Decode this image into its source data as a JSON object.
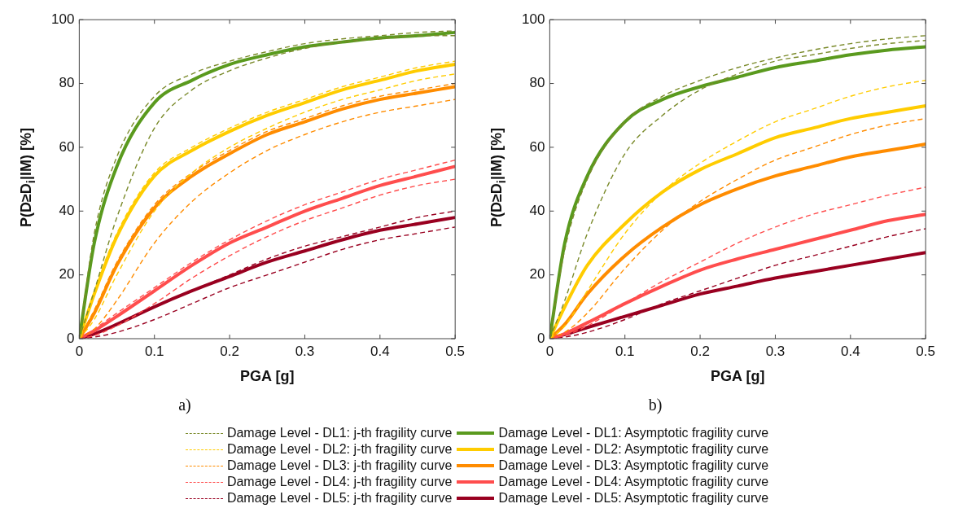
{
  "chart_data": [
    {
      "type": "line",
      "xlabel": "PGA [g]",
      "ylabel": "P(D≥D$_{i}$|IM) [%]",
      "annotations": [
        "a)"
      ],
      "xlim": [
        0,
        0.5
      ],
      "xticks": [
        0,
        0.1,
        0.2,
        0.3,
        0.4,
        0.5
      ],
      "ylim": [
        0,
        100
      ],
      "yticks": [
        0,
        20,
        40,
        60,
        80,
        100
      ],
      "grid": false,
      "legend": "bottom",
      "x": [
        0,
        0.02,
        0.05,
        0.1,
        0.15,
        0.2,
        0.25,
        0.3,
        0.35,
        0.4,
        0.45,
        0.5
      ],
      "series": [
        {
          "name": "Damage Level - DL1: j-th fragility curve",
          "color": "#7a8a2a",
          "line_style": "dashed",
          "values": [
            0,
            15,
            38,
            66,
            78,
            84,
            88,
            91,
            93,
            94,
            95,
            95
          ]
        },
        {
          "color": "#7a8a2a",
          "line_style": "dashed",
          "values": [
            0,
            33,
            57,
            76,
            83,
            87,
            90,
            92.5,
            94,
            95,
            96,
            96.5
          ]
        },
        {
          "name": "Damage Level - DL2: j-th fragility curve",
          "color": "#ffcc00",
          "line_style": "dashed",
          "values": [
            0,
            6,
            20,
            40,
            52,
            60,
            66,
            71,
            75,
            78,
            81,
            83
          ]
        },
        {
          "color": "#ffcc00",
          "line_style": "dashed",
          "values": [
            0,
            15,
            33,
            52,
            60,
            66,
            71,
            75,
            79,
            82,
            85,
            87
          ]
        },
        {
          "name": "Damage Level - DL3: j-th fragility curve",
          "color": "#ff8c00",
          "line_style": "dashed",
          "values": [
            0,
            3,
            12,
            30,
            43,
            52,
            59,
            64,
            68,
            71,
            73,
            75
          ]
        },
        {
          "color": "#ff8c00",
          "line_style": "dashed",
          "values": [
            0,
            9,
            24,
            42,
            52,
            59,
            65,
            69,
            73,
            76,
            78,
            80
          ]
        },
        {
          "name": "Damage Level - DL4: j-th fragility curve",
          "color": "#ff4d4d",
          "line_style": "dashed",
          "values": [
            0,
            1,
            4,
            11,
            19,
            26,
            32,
            37,
            41,
            45,
            48,
            50
          ]
        },
        {
          "color": "#ff4d4d",
          "line_style": "dashed",
          "values": [
            0,
            3,
            8,
            16,
            24,
            31,
            37,
            42,
            46,
            50,
            53,
            56
          ]
        },
        {
          "name": "Damage Level - DL5: j-th fragility curve",
          "color": "#990020",
          "line_style": "dashed",
          "values": [
            0,
            0.5,
            2,
            6,
            11,
            16,
            20,
            24,
            28,
            31,
            33,
            35
          ]
        },
        {
          "color": "#990020",
          "line_style": "dashed",
          "values": [
            0,
            1.5,
            4.5,
            10,
            15,
            20,
            25,
            29,
            32,
            35,
            38,
            40
          ]
        },
        {
          "name": "Damage Level - DL1: Asymptotic fragility curve",
          "color": "#5a9a1e",
          "line_style": "solid",
          "values": [
            0,
            30,
            54,
            74,
            81,
            86,
            89,
            91.5,
            93,
            94.3,
            95,
            96
          ]
        },
        {
          "name": "Damage Level - DL2: Asymptotic fragility curve",
          "color": "#ffcc00",
          "line_style": "solid",
          "values": [
            0,
            14,
            32,
            51,
            59,
            65,
            70,
            74,
            78,
            81,
            84,
            86
          ]
        },
        {
          "name": "Damage Level - DL3: Asymptotic fragility curve",
          "color": "#ff8c00",
          "line_style": "solid",
          "values": [
            0,
            8,
            23,
            41,
            51,
            58,
            64,
            68,
            72,
            75,
            77,
            79
          ]
        },
        {
          "name": "Damage Level - DL4: Asymptotic fragility curve",
          "color": "#ff4d4d",
          "line_style": "solid",
          "values": [
            0,
            2.5,
            7,
            15,
            23,
            30,
            35,
            40,
            44,
            48,
            51,
            54
          ]
        },
        {
          "name": "Damage Level - DL5: Asymptotic fragility curve",
          "color": "#990020",
          "line_style": "solid",
          "values": [
            0,
            1.5,
            4.5,
            10,
            15,
            19.5,
            24,
            27.5,
            31,
            34,
            36,
            38
          ]
        }
      ]
    },
    {
      "type": "line",
      "xlabel": "PGA [g]",
      "ylabel": "P(D≥D$_{i}$|IM) [%]",
      "annotations": [
        "b)"
      ],
      "xlim": [
        0,
        0.5
      ],
      "xticks": [
        0,
        0.1,
        0.2,
        0.3,
        0.4,
        0.5
      ],
      "ylim": [
        0,
        100
      ],
      "yticks": [
        0,
        20,
        40,
        60,
        80,
        100
      ],
      "grid": false,
      "x": [
        0,
        0.02,
        0.05,
        0.1,
        0.15,
        0.2,
        0.25,
        0.3,
        0.35,
        0.4,
        0.45,
        0.5
      ],
      "series": [
        {
          "color": "#7a8a2a",
          "line_style": "dashed",
          "values": [
            0,
            12,
            33,
            58,
            70,
            78,
            83,
            87,
            89,
            91,
            92.5,
            93.5
          ]
        },
        {
          "color": "#7a8a2a",
          "line_style": "dashed",
          "values": [
            0,
            28,
            50,
            68,
            76,
            81,
            85,
            88,
            90.5,
            92.5,
            94,
            95
          ]
        },
        {
          "color": "#ffcc00",
          "line_style": "dashed",
          "values": [
            0,
            4,
            15,
            33,
            46,
            55,
            62,
            68,
            72,
            76,
            79,
            81
          ]
        },
        {
          "color": "#ff8c00",
          "line_style": "dashed",
          "values": [
            0,
            2,
            8,
            22,
            34,
            43,
            50,
            56,
            60,
            64,
            67,
            69
          ]
        },
        {
          "color": "#ff4d4d",
          "line_style": "dashed",
          "values": [
            0,
            1,
            4,
            11,
            18,
            24,
            30,
            35,
            39,
            42,
            45,
            47.5
          ]
        },
        {
          "color": "#990020",
          "line_style": "dashed",
          "values": [
            0,
            0.5,
            2,
            6,
            11,
            15,
            19,
            23,
            26,
            29,
            32,
            34.5
          ]
        },
        {
          "color": "#5a9a1e",
          "line_style": "solid",
          "values": [
            0,
            30,
            51,
            68,
            75,
            79,
            82,
            85,
            87,
            89,
            90.5,
            91.5
          ]
        },
        {
          "color": "#ffcc00",
          "line_style": "solid",
          "values": [
            0,
            10,
            23,
            36,
            46,
            53,
            58,
            63,
            66,
            69,
            71,
            73
          ]
        },
        {
          "color": "#ff8c00",
          "line_style": "solid",
          "values": [
            0,
            4.5,
            14,
            26,
            35,
            42,
            47,
            51,
            54,
            57,
            59,
            61
          ]
        },
        {
          "color": "#ff4d4d",
          "line_style": "solid",
          "values": [
            0,
            1.6,
            5,
            11,
            16.5,
            21.5,
            25,
            28,
            31,
            34,
            37,
            39
          ]
        },
        {
          "color": "#990020",
          "line_style": "solid",
          "values": [
            0,
            1.3,
            3.5,
            7,
            10.5,
            14,
            16.5,
            19,
            21,
            23,
            25,
            27
          ]
        }
      ]
    }
  ]
}
